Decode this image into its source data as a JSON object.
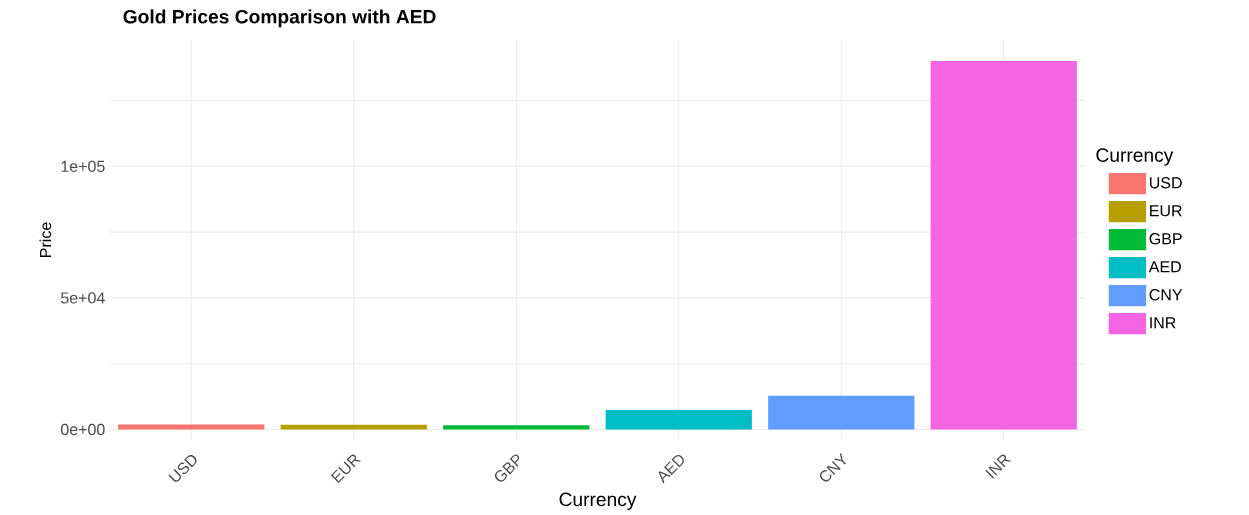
{
  "chart_data": {
    "type": "bar",
    "title": "Gold Prices Comparison with AED",
    "xlabel": "Currency",
    "ylabel": "Price",
    "legend_title": "Currency",
    "categories": [
      "USD",
      "EUR",
      "GBP",
      "AED",
      "CNY",
      "INR"
    ],
    "series": [
      {
        "name": "USD",
        "color": "#f8766d",
        "values": [
          1900,
          null,
          null,
          null,
          null,
          null
        ]
      },
      {
        "name": "EUR",
        "color": "#b79f00",
        "values": [
          null,
          1800,
          null,
          null,
          null,
          null
        ]
      },
      {
        "name": "GBP",
        "color": "#00ba38",
        "values": [
          null,
          null,
          1600,
          null,
          null,
          null
        ]
      },
      {
        "name": "AED",
        "color": "#00bfc4",
        "values": [
          null,
          null,
          null,
          7400,
          null,
          null
        ]
      },
      {
        "name": "CNY",
        "color": "#619cff",
        "values": [
          null,
          null,
          null,
          null,
          12800,
          null
        ]
      },
      {
        "name": "INR",
        "color": "#f564e3",
        "values": [
          null,
          null,
          null,
          null,
          null,
          140000
        ]
      }
    ],
    "ylim": [
      -4000,
      148000
    ],
    "yticks": [
      {
        "value": 0,
        "label": "0e+00"
      },
      {
        "value": 25000,
        "label": null
      },
      {
        "value": 50000,
        "label": "5e+04"
      },
      {
        "value": 75000,
        "label": null
      },
      {
        "value": 100000,
        "label": "1e+05"
      },
      {
        "value": 125000,
        "label": null
      }
    ],
    "grid": true,
    "legend": "right"
  }
}
